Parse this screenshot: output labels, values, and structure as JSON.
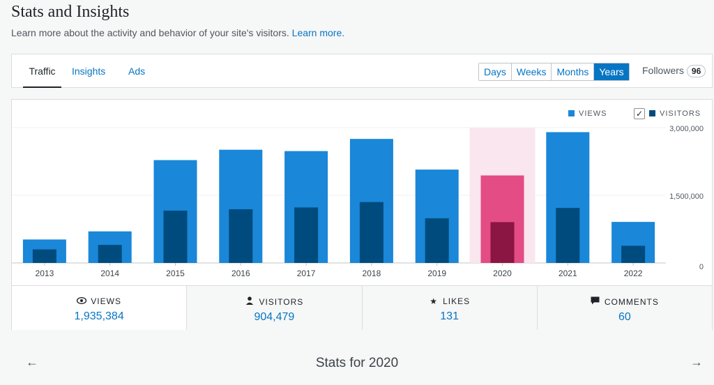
{
  "header": {
    "title": "Stats and Insights",
    "subtitle": "Learn more about the activity and behavior of your site's visitors.",
    "learn_more": "Learn more."
  },
  "nav": {
    "tabs": [
      "Traffic",
      "Insights",
      "Ads"
    ],
    "active_tab": "Traffic",
    "periods": [
      "Days",
      "Weeks",
      "Months",
      "Years"
    ],
    "active_period": "Years",
    "followers_label": "Followers",
    "followers_count": "96"
  },
  "legend": {
    "views": "VIEWS",
    "visitors": "VISITORS",
    "visitors_checked": true
  },
  "colors": {
    "views": "#1a87d8",
    "visitors": "#004b7d",
    "selected_views": "#e34c84",
    "selected_visitors": "#8b1543",
    "selected_band": "#f9e6ee",
    "accent": "#0675c4"
  },
  "chart_data": {
    "type": "bar",
    "categories": [
      "2013",
      "2014",
      "2015",
      "2016",
      "2017",
      "2018",
      "2019",
      "2020",
      "2021",
      "2022"
    ],
    "series": [
      {
        "name": "VIEWS",
        "values": [
          520000,
          700000,
          2280000,
          2510000,
          2480000,
          2750000,
          2070000,
          1940000,
          2900000,
          910000
        ]
      },
      {
        "name": "VISITORS",
        "values": [
          300000,
          400000,
          1160000,
          1190000,
          1230000,
          1350000,
          990000,
          905000,
          1220000,
          380000
        ]
      }
    ],
    "selected": "2020",
    "yticks": [
      "3,000,000",
      "1,500,000",
      "0"
    ],
    "ylim": [
      0,
      3000000
    ]
  },
  "stats": [
    {
      "label": "VIEWS",
      "value": "1,935,384",
      "icon": "eye-icon"
    },
    {
      "label": "VISITORS",
      "value": "904,479",
      "icon": "person-icon"
    },
    {
      "label": "LIKES",
      "value": "131",
      "icon": "star-icon"
    },
    {
      "label": "COMMENTS",
      "value": "60",
      "icon": "comment-icon"
    }
  ],
  "footer": {
    "period_title": "Stats for 2020"
  }
}
